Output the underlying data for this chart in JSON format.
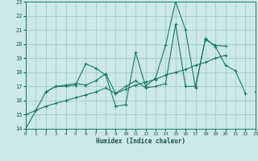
{
  "xlabel": "Humidex (Indice chaleur)",
  "xlim": [
    0,
    23
  ],
  "ylim": [
    14,
    23
  ],
  "yticks": [
    14,
    15,
    16,
    17,
    18,
    19,
    20,
    21,
    22,
    23
  ],
  "xticks": [
    0,
    1,
    2,
    3,
    4,
    5,
    6,
    7,
    8,
    9,
    10,
    11,
    12,
    13,
    14,
    15,
    16,
    17,
    18,
    19,
    20,
    21,
    22,
    23
  ],
  "bg_color": "#cce8e8",
  "grid_color": "#a8d0d0",
  "line_color": "#1a7a6a",
  "series": [
    [
      14.0,
      15.3,
      16.6,
      17.0,
      17.0,
      17.1,
      18.6,
      18.3,
      17.8,
      15.6,
      15.7,
      19.4,
      17.0,
      17.6,
      19.9,
      23.0,
      21.0,
      16.9,
      20.4,
      19.8,
      18.5,
      18.1,
      16.5,
      null
    ],
    [
      null,
      null,
      16.6,
      17.0,
      17.1,
      17.2,
      17.1,
      17.4,
      17.9,
      16.5,
      17.0,
      17.4,
      16.9,
      17.0,
      17.2,
      21.4,
      17.0,
      17.0,
      20.4,
      null,
      null,
      null,
      null,
      null
    ],
    [
      15.0,
      15.3,
      15.6,
      15.8,
      16.0,
      16.2,
      16.4,
      16.6,
      16.9,
      16.5,
      16.8,
      17.1,
      17.3,
      17.5,
      17.8,
      18.0,
      18.2,
      18.5,
      18.7,
      19.0,
      19.2,
      null,
      null,
      null
    ],
    [
      null,
      null,
      null,
      null,
      null,
      null,
      null,
      null,
      null,
      null,
      null,
      null,
      null,
      null,
      null,
      null,
      null,
      null,
      20.3,
      19.9,
      19.85,
      null,
      null,
      16.6
    ]
  ]
}
